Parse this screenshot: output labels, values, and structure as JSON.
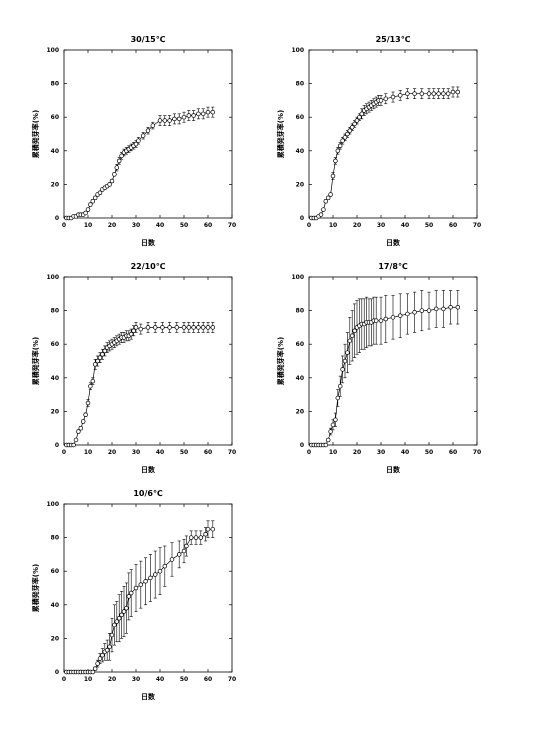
{
  "chart_data": [
    {
      "type": "line",
      "title": "30/15℃",
      "xlabel": "日数",
      "ylabel": "累積発芽率(%)",
      "xlim": [
        0,
        70
      ],
      "ylim": [
        0,
        100
      ],
      "xticks": [
        "0",
        "10",
        "20",
        "30",
        "40",
        "50",
        "60",
        "70"
      ],
      "yticks": [
        "0",
        "20",
        "40",
        "60",
        "80",
        "100"
      ],
      "grid": false,
      "series": [
        {
          "x": [
            1,
            2,
            3,
            4,
            5,
            6,
            7,
            8,
            9,
            10,
            11,
            12,
            13,
            14,
            15,
            16,
            17,
            18,
            19,
            20,
            21,
            22,
            23,
            24,
            25,
            26,
            27,
            28,
            29,
            30,
            31,
            33,
            35,
            37,
            40,
            42,
            44,
            46,
            48,
            50,
            52,
            54,
            56,
            58,
            60,
            62
          ],
          "y": [
            0,
            0,
            0,
            1,
            1,
            2,
            2,
            2,
            3,
            5,
            8,
            10,
            12,
            14,
            15,
            17,
            18,
            19,
            20,
            22,
            26,
            30,
            34,
            37,
            39,
            40,
            41,
            42,
            43,
            44,
            46,
            49,
            52,
            55,
            58,
            58,
            58,
            59,
            59,
            60,
            61,
            61,
            62,
            62,
            63,
            63
          ],
          "err": [
            0,
            0,
            0,
            0,
            0,
            0,
            0,
            0,
            1,
            1,
            1,
            1,
            1,
            1,
            1,
            1,
            1,
            1,
            1,
            1,
            1,
            2,
            2,
            2,
            2,
            2,
            2,
            2,
            2,
            2,
            2,
            2,
            2,
            2,
            3,
            3,
            3,
            3,
            3,
            3,
            3,
            3,
            3,
            3,
            3,
            3
          ]
        }
      ]
    },
    {
      "type": "line",
      "title": "25/13℃",
      "xlabel": "日数",
      "ylabel": "累積発芽率(%)",
      "xlim": [
        0,
        70
      ],
      "ylim": [
        0,
        100
      ],
      "xticks": [
        "0",
        "10",
        "20",
        "30",
        "40",
        "50",
        "60",
        "70"
      ],
      "yticks": [
        "0",
        "20",
        "40",
        "60",
        "80",
        "100"
      ],
      "grid": false,
      "series": [
        {
          "x": [
            1,
            2,
            3,
            4,
            5,
            6,
            7,
            8,
            9,
            10,
            11,
            12,
            13,
            14,
            15,
            16,
            17,
            18,
            19,
            20,
            21,
            22,
            23,
            24,
            25,
            26,
            27,
            28,
            29,
            30,
            32,
            35,
            38,
            41,
            44,
            47,
            50,
            52,
            54,
            56,
            58,
            60,
            62
          ],
          "y": [
            0,
            0,
            0,
            1,
            2,
            5,
            10,
            12,
            14,
            25,
            34,
            40,
            43,
            46,
            48,
            50,
            52,
            54,
            56,
            58,
            60,
            62,
            64,
            65,
            66,
            67,
            68,
            69,
            70,
            70,
            71,
            72,
            73,
            74,
            74,
            74,
            74,
            74,
            74,
            74,
            74,
            75,
            75
          ],
          "err": [
            0,
            0,
            0,
            0,
            0,
            0,
            1,
            1,
            1,
            2,
            2,
            2,
            2,
            2,
            2,
            2,
            2,
            2,
            2,
            2,
            2,
            3,
            3,
            3,
            3,
            3,
            3,
            3,
            3,
            3,
            3,
            3,
            3,
            3,
            3,
            3,
            3,
            3,
            3,
            3,
            3,
            3,
            3
          ]
        }
      ]
    },
    {
      "type": "line",
      "title": "22/10℃",
      "xlabel": "日数",
      "ylabel": "累積発芽率(%)",
      "xlim": [
        0,
        70
      ],
      "ylim": [
        0,
        100
      ],
      "xticks": [
        "0",
        "10",
        "20",
        "30",
        "40",
        "50",
        "60",
        "70"
      ],
      "yticks": [
        "0",
        "20",
        "40",
        "60",
        "80",
        "100"
      ],
      "grid": false,
      "series": [
        {
          "x": [
            1,
            2,
            3,
            4,
            5,
            6,
            7,
            8,
            9,
            10,
            11,
            12,
            13,
            14,
            15,
            16,
            17,
            18,
            19,
            20,
            21,
            22,
            23,
            24,
            25,
            26,
            27,
            28,
            29,
            30,
            32,
            35,
            38,
            41,
            44,
            47,
            50,
            52,
            54,
            56,
            58,
            60,
            62
          ],
          "y": [
            0,
            0,
            0,
            0,
            3,
            8,
            10,
            14,
            18,
            25,
            35,
            38,
            48,
            50,
            52,
            54,
            56,
            58,
            59,
            60,
            61,
            62,
            63,
            64,
            64,
            65,
            65,
            66,
            68,
            70,
            69,
            70,
            70,
            70,
            70,
            70,
            70,
            70,
            70,
            70,
            70,
            70,
            70
          ],
          "err": [
            0,
            0,
            0,
            0,
            0,
            1,
            1,
            1,
            1,
            2,
            2,
            2,
            3,
            3,
            3,
            3,
            3,
            3,
            3,
            3,
            3,
            3,
            3,
            3,
            3,
            3,
            3,
            3,
            3,
            3,
            3,
            3,
            3,
            3,
            3,
            3,
            3,
            3,
            3,
            3,
            3,
            3,
            3
          ]
        }
      ]
    },
    {
      "type": "line",
      "title": "17/8℃",
      "xlabel": "日数",
      "ylabel": "累積発芽率(%)",
      "xlim": [
        0,
        70
      ],
      "ylim": [
        0,
        100
      ],
      "xticks": [
        "0",
        "10",
        "20",
        "30",
        "40",
        "50",
        "60",
        "70"
      ],
      "yticks": [
        "0",
        "20",
        "40",
        "60",
        "80",
        "100"
      ],
      "grid": false,
      "series": [
        {
          "x": [
            1,
            2,
            3,
            4,
            5,
            6,
            7,
            8,
            9,
            10,
            11,
            12,
            13,
            14,
            15,
            16,
            17,
            18,
            19,
            20,
            21,
            22,
            23,
            24,
            25,
            26,
            27,
            28,
            30,
            32,
            35,
            38,
            41,
            44,
            47,
            50,
            53,
            56,
            59,
            62
          ],
          "y": [
            0,
            0,
            0,
            0,
            0,
            0,
            0,
            3,
            8,
            12,
            15,
            28,
            35,
            45,
            50,
            55,
            62,
            65,
            68,
            70,
            71,
            72,
            72,
            73,
            73,
            73,
            74,
            74,
            74,
            75,
            76,
            77,
            78,
            79,
            80,
            80,
            81,
            81,
            82,
            82
          ],
          "err": [
            0,
            0,
            0,
            0,
            0,
            0,
            0,
            1,
            2,
            3,
            4,
            5,
            6,
            8,
            10,
            12,
            14,
            15,
            16,
            16,
            16,
            15,
            15,
            15,
            14,
            14,
            14,
            14,
            14,
            14,
            13,
            13,
            12,
            12,
            12,
            11,
            11,
            11,
            10,
            10
          ]
        }
      ]
    },
    {
      "type": "line",
      "title": "10/6℃",
      "xlabel": "日数",
      "ylabel": "累積発芽率(%)",
      "xlim": [
        0,
        70
      ],
      "ylim": [
        0,
        100
      ],
      "xticks": [
        "0",
        "10",
        "20",
        "30",
        "40",
        "50",
        "60",
        "70"
      ],
      "yticks": [
        "0",
        "20",
        "40",
        "60",
        "80",
        "100"
      ],
      "grid": false,
      "series": [
        {
          "x": [
            1,
            2,
            3,
            4,
            5,
            6,
            7,
            8,
            9,
            10,
            11,
            12,
            13,
            14,
            15,
            16,
            17,
            18,
            19,
            20,
            21,
            22,
            23,
            24,
            25,
            26,
            27,
            28,
            30,
            32,
            34,
            36,
            38,
            40,
            42,
            45,
            48,
            50,
            51,
            53,
            55,
            57,
            59,
            60,
            62
          ],
          "y": [
            0,
            0,
            0,
            0,
            0,
            0,
            0,
            0,
            0,
            0,
            0,
            0,
            2,
            5,
            8,
            10,
            12,
            13,
            15,
            22,
            28,
            30,
            32,
            34,
            36,
            38,
            45,
            47,
            50,
            52,
            54,
            56,
            58,
            60,
            63,
            67,
            70,
            72,
            75,
            80,
            80,
            80,
            82,
            85,
            85
          ],
          "err": [
            0,
            0,
            0,
            0,
            0,
            0,
            0,
            0,
            0,
            0,
            0,
            0,
            1,
            2,
            3,
            4,
            5,
            6,
            8,
            10,
            12,
            12,
            14,
            14,
            15,
            15,
            14,
            14,
            14,
            14,
            14,
            14,
            14,
            14,
            12,
            10,
            8,
            7,
            6,
            4,
            4,
            4,
            4,
            5,
            5
          ]
        }
      ]
    }
  ]
}
